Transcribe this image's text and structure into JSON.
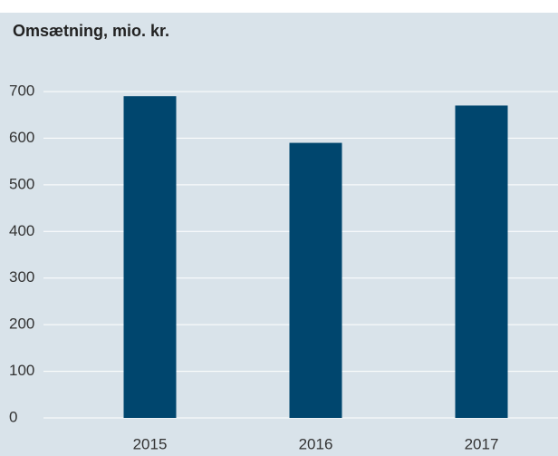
{
  "chart_data": {
    "type": "bar",
    "title": "Omsætning, mio. kr.",
    "categories": [
      "2015",
      "2016",
      "2017"
    ],
    "values": [
      690,
      590,
      670
    ],
    "color": "#00466e",
    "ylim": [
      0,
      700
    ],
    "yticks": [
      0,
      100,
      200,
      300,
      400,
      500,
      600,
      700
    ],
    "grid": true
  }
}
